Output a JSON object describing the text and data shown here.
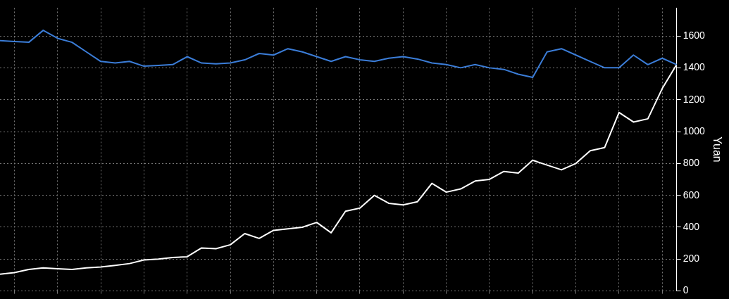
{
  "chart_data": {
    "type": "line",
    "ylabel": "Yuan",
    "categories": [
      null,
      null,
      null,
      null,
      null,
      null,
      null,
      null,
      null,
      null,
      null,
      null,
      null,
      null,
      null,
      null,
      null,
      null,
      null,
      null,
      null,
      null,
      null,
      null,
      null,
      null,
      null,
      null,
      null,
      null,
      null,
      null,
      null,
      null,
      null,
      null,
      null,
      null,
      null,
      null,
      null,
      null,
      null,
      null,
      null,
      null,
      null,
      null
    ],
    "series": [
      {
        "color": "#3b7dd8",
        "values": [
          1570,
          1565,
          1560,
          1635,
          1585,
          1560,
          1500,
          1440,
          1430,
          1440,
          1410,
          1415,
          1420,
          1470,
          1430,
          1425,
          1430,
          1450,
          1490,
          1480,
          1520,
          1500,
          1470,
          1440,
          1470,
          1450,
          1440,
          1460,
          1470,
          1455,
          1430,
          1420,
          1400,
          1420,
          1400,
          1390,
          1360,
          1340,
          1500,
          1520,
          1480,
          1440,
          1400,
          1400,
          1480,
          1420,
          1460,
          1420
        ]
      },
      {
        "color": "#ffffff",
        "values": [
          105,
          115,
          135,
          145,
          140,
          135,
          145,
          150,
          160,
          172,
          195,
          200,
          210,
          215,
          270,
          265,
          290,
          360,
          330,
          380,
          390,
          400,
          430,
          365,
          500,
          520,
          600,
          550,
          540,
          560,
          675,
          620,
          640,
          690,
          700,
          750,
          740,
          820,
          790,
          760,
          800,
          880,
          900,
          1120,
          1060,
          1080,
          1270,
          1420
        ]
      }
    ],
    "ylim": [
      0,
      1775
    ],
    "yticks": [
      0,
      200,
      400,
      600,
      800,
      1000,
      1200,
      1400,
      1600
    ],
    "grid": true,
    "tick_labels": "y",
    "legend": false,
    "marker": "none",
    "line_style": "solid"
  }
}
